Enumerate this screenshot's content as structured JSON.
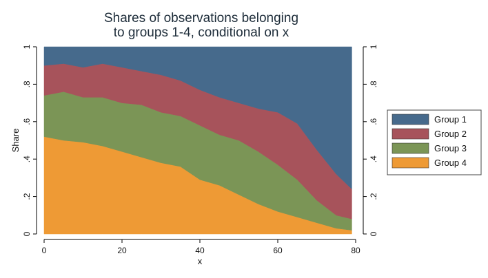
{
  "chart_data": {
    "type": "area",
    "stacked": true,
    "title": [
      "Shares of observations belonging",
      "to groups 1-4, conditional on x"
    ],
    "xlabel": "x",
    "ylabel": "Share",
    "xlim": [
      0,
      80
    ],
    "ylim": [
      0,
      1
    ],
    "x_ticks": [
      0,
      20,
      40,
      60,
      80
    ],
    "x_tick_labels": [
      "0",
      "20",
      "40",
      "60",
      "80"
    ],
    "y_ticks": [
      0,
      0.2,
      0.4,
      0.6,
      0.8,
      1
    ],
    "y_tick_labels": [
      "0",
      ".2",
      ".4",
      ".6",
      ".8",
      "1"
    ],
    "legend_position": "right",
    "x": [
      0,
      5,
      10,
      15,
      20,
      25,
      30,
      35,
      40,
      45,
      50,
      55,
      60,
      65,
      70,
      75,
      79
    ],
    "series": [
      {
        "name": "Group 4",
        "color": "#ee9a35",
        "values": [
          0.52,
          0.5,
          0.49,
          0.47,
          0.44,
          0.41,
          0.38,
          0.36,
          0.29,
          0.26,
          0.21,
          0.16,
          0.12,
          0.09,
          0.06,
          0.03,
          0.02
        ]
      },
      {
        "name": "Group 3",
        "color": "#7b9556",
        "values": [
          0.22,
          0.26,
          0.24,
          0.26,
          0.26,
          0.28,
          0.27,
          0.27,
          0.29,
          0.27,
          0.29,
          0.28,
          0.25,
          0.2,
          0.12,
          0.07,
          0.06
        ]
      },
      {
        "name": "Group 2",
        "color": "#a7535b",
        "values": [
          0.16,
          0.15,
          0.16,
          0.18,
          0.19,
          0.18,
          0.2,
          0.19,
          0.19,
          0.2,
          0.2,
          0.23,
          0.28,
          0.3,
          0.27,
          0.22,
          0.16
        ]
      },
      {
        "name": "Group 1",
        "color": "#466a8c",
        "values": [
          0.1,
          0.09,
          0.11,
          0.09,
          0.11,
          0.13,
          0.15,
          0.18,
          0.23,
          0.27,
          0.3,
          0.33,
          0.35,
          0.41,
          0.55,
          0.68,
          0.76
        ]
      }
    ],
    "legend_order": [
      "Group 1",
      "Group 2",
      "Group 3",
      "Group 4"
    ]
  }
}
